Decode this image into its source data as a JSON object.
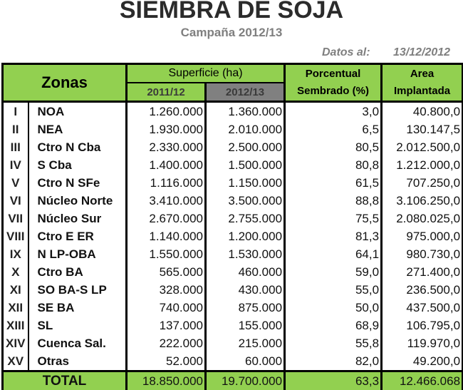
{
  "header": {
    "title": "SIEMBRA DE SOJA",
    "subtitle": "Campaña 2012/13",
    "datos_label": "Datos al:",
    "datos_date": "13/12/2012"
  },
  "table": {
    "columns": {
      "zonas": "Zonas",
      "superficie": "Superficie (ha)",
      "year_prev": "2011/12",
      "year_curr": "2012/13",
      "porcentual": "Porcentual",
      "sembrado": "Sembrado (%)",
      "area": "Area",
      "implantada": "Implantada"
    },
    "colors": {
      "header_green": "#92d050",
      "header_grey": "#808080",
      "border": "#000000"
    },
    "rows": [
      {
        "num": "I",
        "zone": "NOA",
        "s2011": "1.260.000",
        "s2012": "1.360.000",
        "pct": "3,0",
        "area": "40.800,0"
      },
      {
        "num": "II",
        "zone": "NEA",
        "s2011": "1.930.000",
        "s2012": "2.010.000",
        "pct": "6,5",
        "area": "130.147,5"
      },
      {
        "num": "III",
        "zone": "Ctro N Cba",
        "s2011": "2.330.000",
        "s2012": "2.500.000",
        "pct": "80,5",
        "area": "2.012.500,0"
      },
      {
        "num": "IV",
        "zone": "S Cba",
        "s2011": "1.400.000",
        "s2012": "1.500.000",
        "pct": "80,8",
        "area": "1.212.000,0"
      },
      {
        "num": "V",
        "zone": "Ctro N SFe",
        "s2011": "1.116.000",
        "s2012": "1.150.000",
        "pct": "61,5",
        "area": "707.250,0"
      },
      {
        "num": "VI",
        "zone": "Núcleo Norte",
        "s2011": "3.410.000",
        "s2012": "3.500.000",
        "pct": "88,8",
        "area": "3.106.250,0"
      },
      {
        "num": "VII",
        "zone": "Núcleo Sur",
        "s2011": "2.670.000",
        "s2012": "2.755.000",
        "pct": "75,5",
        "area": "2.080.025,0"
      },
      {
        "num": "VIII",
        "zone": "Ctro E ER",
        "s2011": "1.140.000",
        "s2012": "1.200.000",
        "pct": "81,3",
        "area": "975.000,0"
      },
      {
        "num": "IX",
        "zone": "N LP-OBA",
        "s2011": "1.550.000",
        "s2012": "1.530.000",
        "pct": "64,1",
        "area": "980.730,0"
      },
      {
        "num": "X",
        "zone": "Ctro BA",
        "s2011": "565.000",
        "s2012": "460.000",
        "pct": "59,0",
        "area": "271.400,0"
      },
      {
        "num": "XI",
        "zone": "SO BA-S LP",
        "s2011": "328.000",
        "s2012": "430.000",
        "pct": "55,0",
        "area": "236.500,0"
      },
      {
        "num": "XII",
        "zone": "SE BA",
        "s2011": "740.000",
        "s2012": "875.000",
        "pct": "50,0",
        "area": "437.500,0"
      },
      {
        "num": "XIII",
        "zone": "SL",
        "s2011": "137.000",
        "s2012": "155.000",
        "pct": "68,9",
        "area": "106.795,0"
      },
      {
        "num": "XIV",
        "zone": "Cuenca Sal.",
        "s2011": "222.000",
        "s2012": "215.000",
        "pct": "55,8",
        "area": "119.970,0"
      },
      {
        "num": "XV",
        "zone": "Otras",
        "s2011": "52.000",
        "s2012": "60.000",
        "pct": "82,0",
        "area": "49.200,0"
      }
    ],
    "total": {
      "label": "TOTAL",
      "s2011": "18.850.000",
      "s2012": "19.700.000",
      "pct": "63,3",
      "area": "12.466.068"
    }
  }
}
